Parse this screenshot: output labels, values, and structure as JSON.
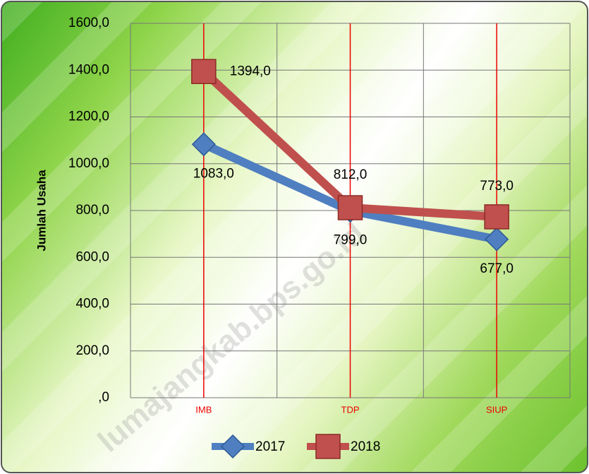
{
  "chart_data": {
    "type": "line",
    "y_axis_label": "Jumlah Usaha",
    "categories": [
      "IMB",
      "TDP",
      "SIUP"
    ],
    "series": [
      {
        "name": "2017",
        "color": "#4f7fc0",
        "values": [
          1083,
          799,
          677
        ],
        "value_labels": [
          "1083,0",
          "799,0",
          "677,0"
        ]
      },
      {
        "name": "2018",
        "color": "#c0504d",
        "values": [
          1394,
          812,
          773
        ],
        "value_labels": [
          "1394,0",
          "812,0",
          "773,0"
        ]
      }
    ],
    "ylim": [
      0,
      1600
    ],
    "yticks": [
      {
        "value": 0,
        "label": ",0"
      },
      {
        "value": 200,
        "label": "200,0"
      },
      {
        "value": 400,
        "label": "400,0"
      },
      {
        "value": 600,
        "label": "600,0"
      },
      {
        "value": 800,
        "label": "800,0"
      },
      {
        "value": 1000,
        "label": "1000,0"
      },
      {
        "value": 1200,
        "label": "1200,0"
      },
      {
        "value": 1400,
        "label": "1400,0"
      },
      {
        "value": 1600,
        "label": "1600,0"
      }
    ],
    "grid": true,
    "legend": "bottom",
    "watermark": "lumajangkab.bps.go.id"
  }
}
